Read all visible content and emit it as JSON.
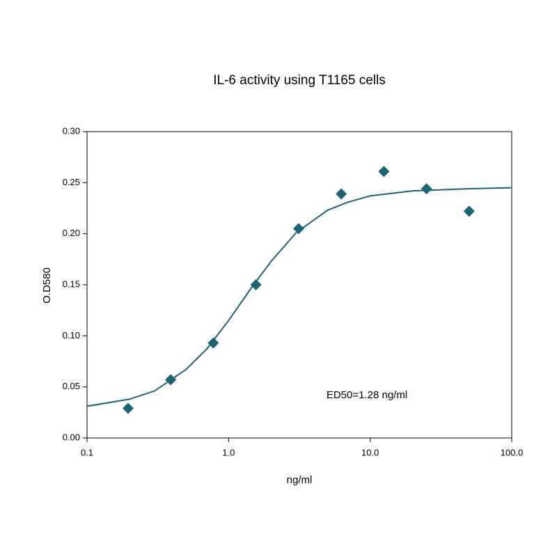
{
  "chart_data": {
    "type": "scatter",
    "title": "IL-6 activity using T1165 cells",
    "xlabel": "ng/ml",
    "ylabel": "O.D580",
    "annotation": "ED50=1.28 ng/ml",
    "xscale": "log",
    "xlim": [
      0.1,
      100
    ],
    "ylim": [
      0,
      0.3
    ],
    "xticks": [
      0.1,
      {
        "value": 1,
        "label": "1.0"
      },
      {
        "value": 10,
        "label": "10.0"
      },
      {
        "value": 100,
        "label": "100.0"
      }
    ],
    "yticks": [
      {
        "value": 0,
        "label": "0.00"
      },
      {
        "value": 0.05,
        "label": "0.05"
      },
      {
        "value": 0.1,
        "label": "0.10"
      },
      {
        "value": 0.15,
        "label": "0.15"
      },
      {
        "value": 0.2,
        "label": "0.20"
      },
      {
        "value": 0.25,
        "label": "0.25"
      },
      {
        "value": 0.3,
        "label": "0.30"
      }
    ],
    "color": "#1b6478",
    "points": {
      "x": [
        0.195,
        0.39,
        0.78,
        1.56,
        3.125,
        6.25,
        12.5,
        25,
        50
      ],
      "values": [
        0.029,
        0.057,
        0.093,
        0.15,
        0.205,
        0.239,
        0.261,
        0.244,
        0.222
      ]
    },
    "fit": {
      "x": [
        0.1,
        0.2,
        0.3,
        0.5,
        0.7,
        1,
        1.5,
        2,
        3,
        5,
        7,
        10,
        20,
        50,
        100
      ],
      "values": [
        0.031,
        0.038,
        0.046,
        0.067,
        0.087,
        0.115,
        0.15,
        0.173,
        0.201,
        0.223,
        0.231,
        0.237,
        0.242,
        0.244,
        0.245
      ]
    }
  }
}
